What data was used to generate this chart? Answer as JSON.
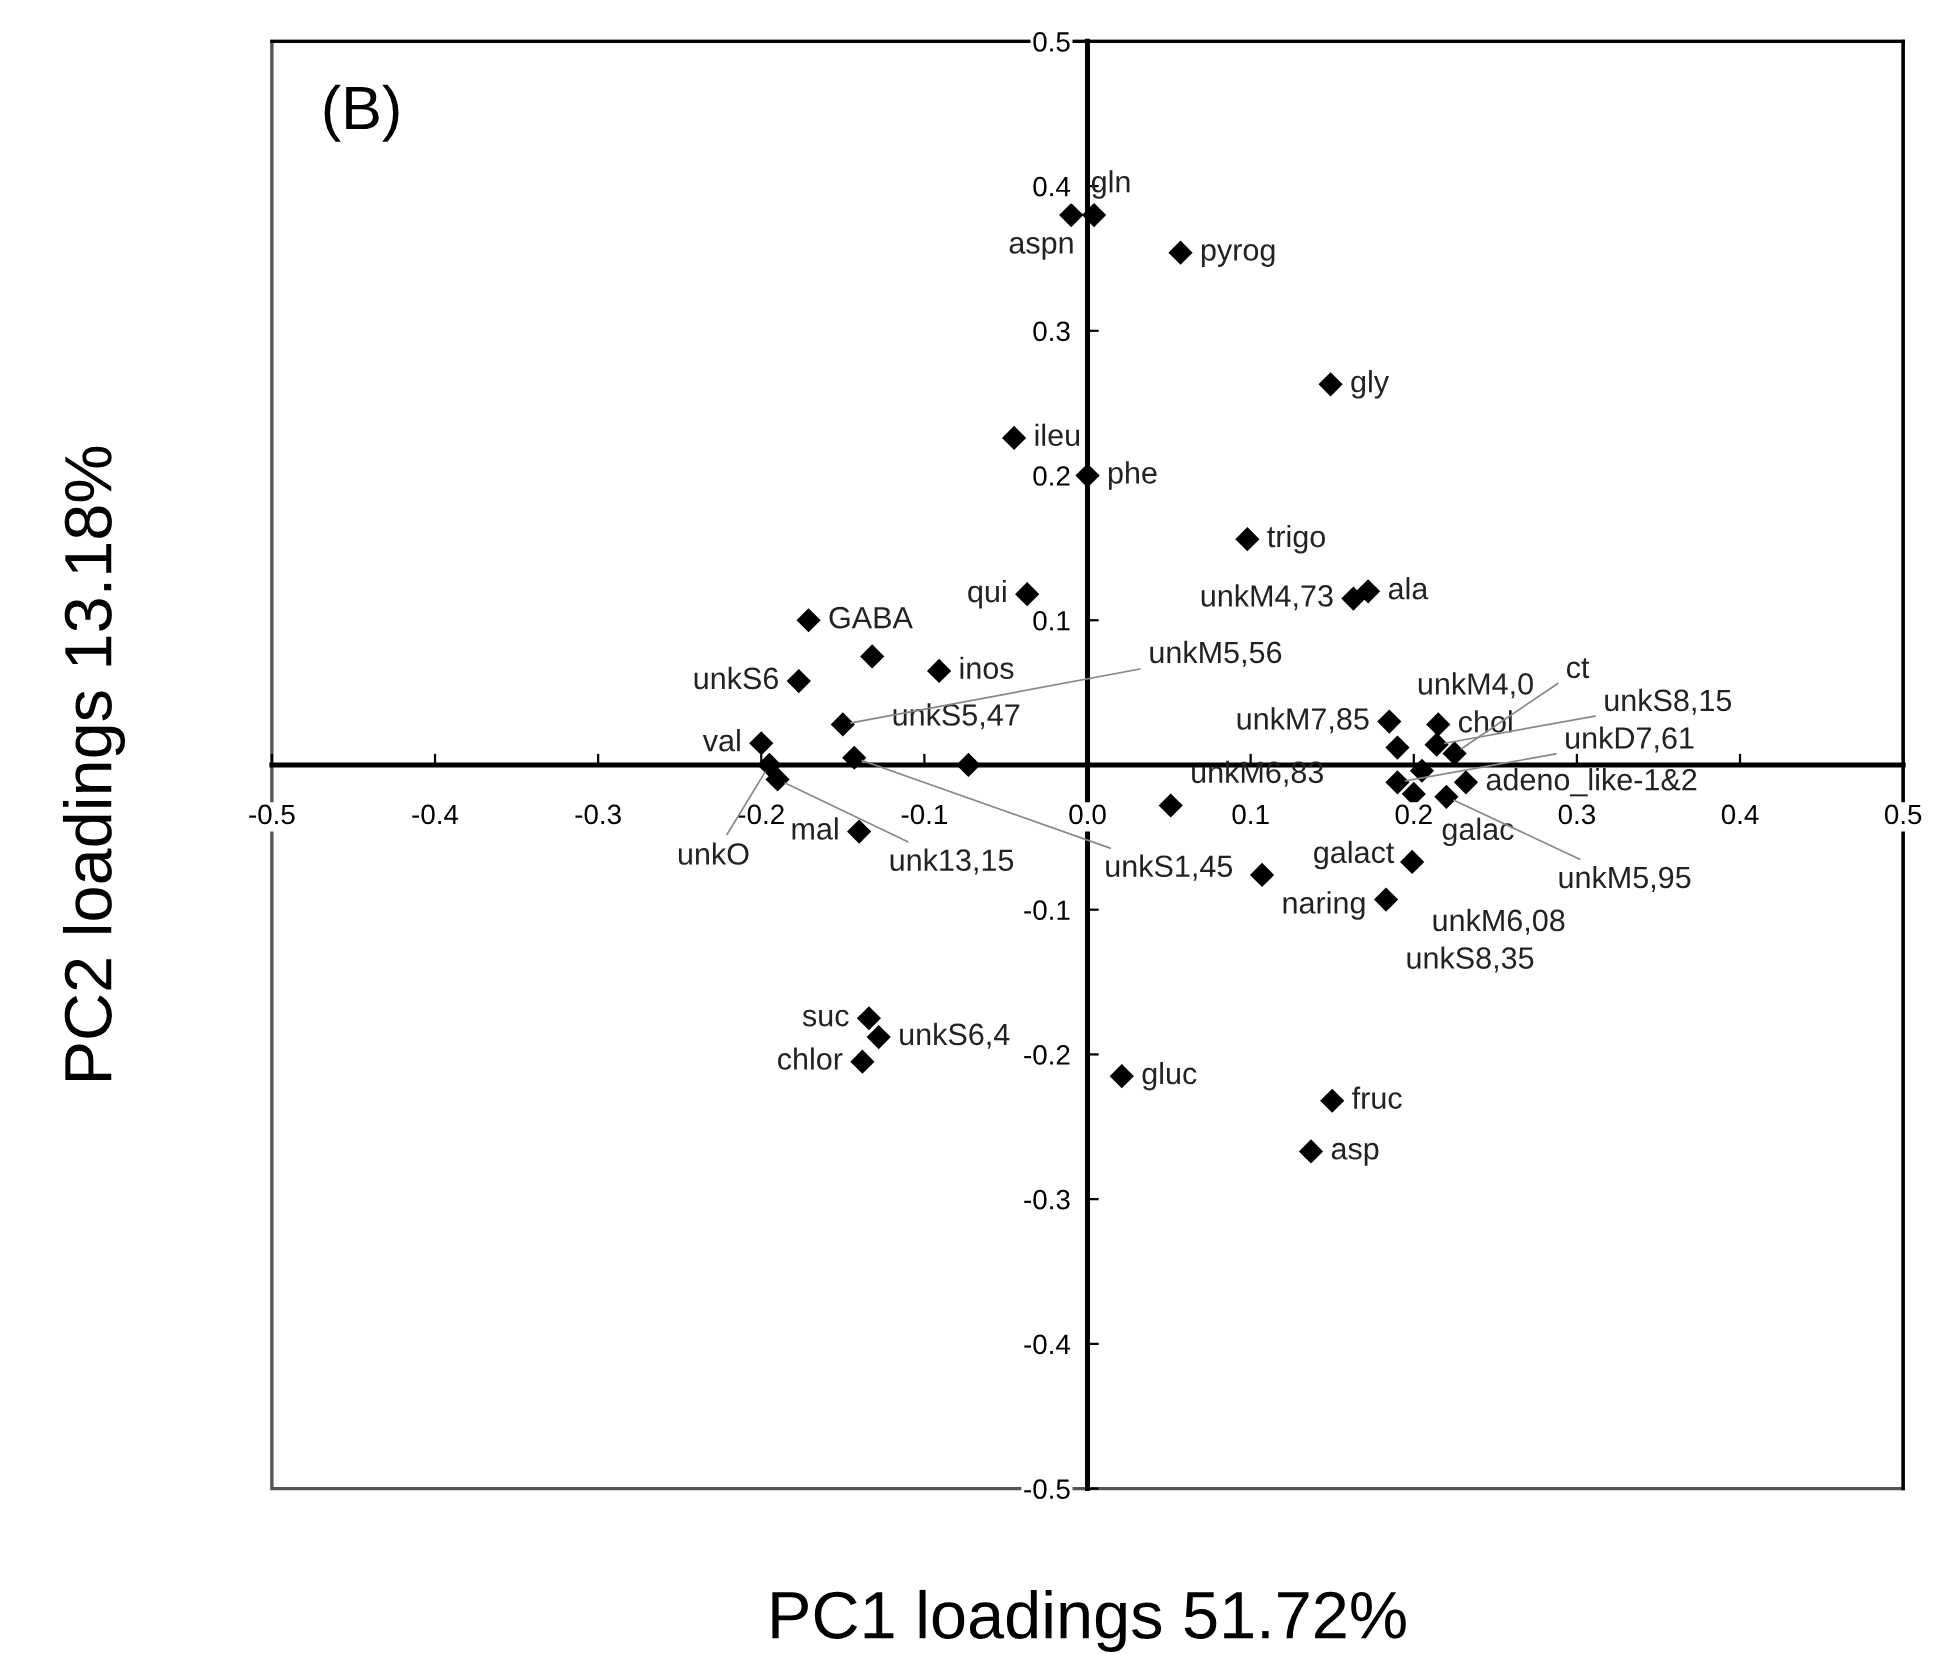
{
  "chart_data": {
    "type": "scatter",
    "title": "(B)",
    "xlabel": "PC1 loadings 51.72%",
    "ylabel": "PC2 loadings 13.18%",
    "xlim": [
      -0.5,
      0.5
    ],
    "ylim": [
      -0.5,
      0.5
    ],
    "xticks": [
      -0.5,
      -0.4,
      -0.3,
      -0.2,
      -0.1,
      {
        "value": 0,
        "label": "0.0"
      },
      0.1,
      0.2,
      0.3,
      0.4,
      0.5
    ],
    "yticks": [
      -0.5,
      -0.4,
      -0.3,
      -0.2,
      -0.1,
      {
        "value": 0,
        "label": null
      },
      0.1,
      0.2,
      0.3,
      0.4,
      0.5
    ],
    "marker": "diamond",
    "grid": false,
    "series": [
      {
        "color": "#000000",
        "x": [
          -0.01,
          0.004,
          0.057,
          0.149,
          -0.045,
          0.0,
          0.098,
          0.172,
          0.163,
          -0.037,
          -0.171,
          -0.132,
          -0.091,
          -0.177,
          -0.2,
          -0.195,
          -0.19,
          -0.15,
          -0.143,
          -0.14,
          -0.073,
          0.051,
          0.185,
          0.19,
          0.215,
          0.205,
          0.225,
          0.2,
          0.232,
          0.214,
          0.22,
          0.19,
          0.107,
          0.199,
          0.183,
          -0.134,
          -0.128,
          -0.138,
          0.021,
          0.15,
          0.137
        ],
        "values": [
          0.38,
          0.38,
          0.354,
          0.263,
          0.226,
          0.2,
          0.156,
          0.12,
          0.115,
          0.118,
          0.1,
          0.075,
          0.065,
          0.058,
          0.015,
          0.0,
          -0.01,
          0.028,
          0.005,
          -0.046,
          0.0,
          -0.028,
          0.03,
          0.012,
          0.028,
          -0.004,
          0.008,
          -0.02,
          -0.012,
          0.014,
          -0.022,
          -0.012,
          -0.076,
          -0.067,
          -0.093,
          -0.175,
          -0.188,
          -0.205,
          -0.215,
          -0.232,
          -0.267
        ]
      }
    ],
    "annotations": [
      {
        "text": "gln",
        "x": -0.01,
        "y": 0.38
      },
      {
        "text": "aspn",
        "x": 0.004,
        "y": 0.38
      },
      {
        "text": "pyrog",
        "x": 0.057,
        "y": 0.354
      },
      {
        "text": "gly",
        "x": 0.149,
        "y": 0.263
      },
      {
        "text": "ileu",
        "x": -0.045,
        "y": 0.226
      },
      {
        "text": "phe",
        "x": 0.0,
        "y": 0.2
      },
      {
        "text": "trigo",
        "x": 0.098,
        "y": 0.156
      },
      {
        "text": "ala",
        "x": 0.172,
        "y": 0.12
      },
      {
        "text": "unkM4,73",
        "x": 0.163,
        "y": 0.115
      },
      {
        "text": "qui",
        "x": -0.037,
        "y": 0.118
      },
      {
        "text": "GABA",
        "x": -0.171,
        "y": 0.1
      },
      {
        "text": "unkS5,47",
        "x": -0.132,
        "y": 0.075
      },
      {
        "text": "inos",
        "x": -0.091,
        "y": 0.065
      },
      {
        "text": "unkS6",
        "x": -0.177,
        "y": 0.058
      },
      {
        "text": "val",
        "x": -0.2,
        "y": 0.015
      },
      {
        "text": "unkO",
        "x": -0.195,
        "y": 0.0
      },
      {
        "text": "unk13,15",
        "x": -0.19,
        "y": -0.01
      },
      {
        "text": "unkM5,56",
        "x": -0.15,
        "y": 0.028
      },
      {
        "text": "unkS1,45",
        "x": -0.143,
        "y": 0.005
      },
      {
        "text": "mal",
        "x": -0.14,
        "y": -0.046
      },
      {
        "text": "unkM6,83",
        "x": 0.051,
        "y": -0.028
      },
      {
        "text": "unkM7,85",
        "x": 0.185,
        "y": 0.03
      },
      {
        "text": "unkM4,0",
        "x": 0.19,
        "y": 0.012
      },
      {
        "text": "chol",
        "x": 0.215,
        "y": 0.028
      },
      {
        "text": "galac",
        "x": 0.205,
        "y": -0.004
      },
      {
        "text": "ct",
        "x": 0.225,
        "y": 0.008
      },
      {
        "text": "galact",
        "x": 0.2,
        "y": -0.02
      },
      {
        "text": "adeno_like-1&2",
        "x": 0.232,
        "y": -0.012
      },
      {
        "text": "unkS8,15",
        "x": 0.214,
        "y": 0.014
      },
      {
        "text": "unkM5,95",
        "x": 0.22,
        "y": -0.022
      },
      {
        "text": "unkD7,61",
        "x": 0.19,
        "y": -0.012
      },
      {
        "text": "naring",
        "x": 0.107,
        "y": -0.076
      },
      {
        "text": "unkM6,08",
        "x": 0.199,
        "y": -0.067
      },
      {
        "text": "unkS8,35",
        "x": 0.183,
        "y": -0.093
      },
      {
        "text": "suc",
        "x": -0.134,
        "y": -0.175
      },
      {
        "text": "unkS6,4",
        "x": -0.128,
        "y": -0.188
      },
      {
        "text": "chlor",
        "x": -0.138,
        "y": -0.205
      },
      {
        "text": "gluc",
        "x": 0.021,
        "y": -0.215
      },
      {
        "text": "fruc",
        "x": 0.15,
        "y": -0.232
      },
      {
        "text": "asp",
        "x": 0.137,
        "y": -0.267
      }
    ]
  }
}
